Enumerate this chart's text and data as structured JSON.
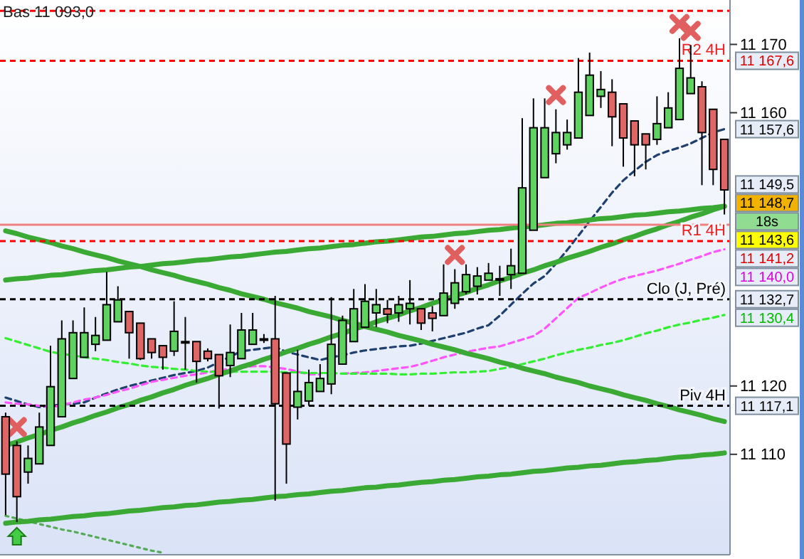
{
  "chart_data": [
    {
      "type": "candlestick",
      "categories": [
        null,
        null,
        null,
        null,
        null,
        null,
        null,
        null,
        null,
        null,
        null,
        null,
        null,
        null,
        null,
        null,
        null,
        null,
        null,
        null,
        null,
        null,
        null,
        null,
        null,
        null,
        null,
        null,
        null,
        null,
        null,
        null,
        null,
        null,
        null,
        null,
        null,
        null,
        null,
        null,
        null,
        null,
        null,
        null,
        null,
        null,
        null,
        null,
        null,
        null,
        null,
        null,
        null,
        null,
        null,
        null,
        null,
        null,
        null,
        null,
        null,
        null,
        null,
        null,
        null
      ],
      "ohlc": [
        [
          11115.5,
          11116.1,
          11101.1,
          11107.1
        ],
        [
          11111.3,
          11111.9,
          11100.1,
          11103.8
        ],
        [
          11107.4,
          11111.3,
          11105.7,
          11109.4
        ],
        [
          11108.6,
          11116.1,
          11108.6,
          11114.0
        ],
        [
          11111.3,
          11125.9,
          11111.3,
          11119.9
        ],
        [
          11115.5,
          11129.6,
          11115.5,
          11126.9
        ],
        [
          11121.1,
          11129.6,
          11121.1,
          11127.8
        ],
        [
          11124.2,
          11131.5,
          11124.2,
          11127.8
        ],
        [
          11126.1,
          11130.1,
          11125.1,
          11127.4
        ],
        [
          11126.7,
          11136.7,
          11126.7,
          11131.9
        ],
        [
          11129.4,
          11134.6,
          11129.4,
          11132.6
        ],
        [
          11130.9,
          11130.9,
          11124.0,
          11127.8
        ],
        [
          11129.2,
          11129.2,
          11123.8,
          11124.0
        ],
        [
          11126.9,
          11126.9,
          11124.0,
          11124.9
        ],
        [
          11125.9,
          11125.9,
          11122.4,
          11124.2
        ],
        [
          11125.1,
          11132.4,
          11124.4,
          11128.0
        ],
        [
          11126.5,
          11130.1,
          11122.4,
          11126.5
        ],
        [
          11126.5,
          11126.5,
          11120.5,
          11123.6
        ],
        [
          11125.1,
          11125.5,
          11123.6,
          11124.0
        ],
        [
          11124.6,
          11124.6,
          11116.7,
          11121.5
        ],
        [
          11123.0,
          11129.0,
          11121.3,
          11124.9
        ],
        [
          11124.0,
          11130.7,
          11124.0,
          11128.2
        ],
        [
          11126.1,
          11130.7,
          11126.1,
          11128.2
        ],
        [
          11126.9,
          11127.6,
          11126.3,
          11126.9
        ],
        [
          11126.9,
          11133.2,
          11103.2,
          11117.4
        ],
        [
          11121.9,
          11121.9,
          11105.7,
          11111.5
        ],
        [
          11116.9,
          11125.3,
          11115.1,
          11119.2
        ],
        [
          11117.8,
          11122.4,
          11117.1,
          11120.5
        ],
        [
          11119.2,
          11123.2,
          11119.2,
          11121.1
        ],
        [
          11120.3,
          11133.0,
          11118.8,
          11126.1
        ],
        [
          11123.2,
          11130.3,
          11123.2,
          11129.6
        ],
        [
          11126.5,
          11134.2,
          11126.5,
          11131.3
        ],
        [
          11128.6,
          11134.9,
          11128.6,
          11132.4
        ],
        [
          11130.7,
          11134.2,
          11128.6,
          11131.9
        ],
        [
          11131.3,
          11132.6,
          11129.2,
          11130.5
        ],
        [
          11130.7,
          11133.2,
          11129.4,
          11131.9
        ],
        [
          11131.3,
          11135.5,
          11129.0,
          11132.1
        ],
        [
          11131.3,
          11131.3,
          11128.2,
          11129.2
        ],
        [
          11130.7,
          11131.7,
          11128.0,
          11129.9
        ],
        [
          11130.3,
          11137.8,
          11130.3,
          11133.6
        ],
        [
          11132.1,
          11137.1,
          11131.3,
          11135.1
        ],
        [
          11133.8,
          11137.8,
          11133.4,
          11136.3
        ],
        [
          11134.6,
          11137.4,
          11133.4,
          11136.1
        ],
        [
          11135.5,
          11138.0,
          11135.5,
          11136.5
        ],
        [
          11135.5,
          11137.6,
          11133.2,
          11135.7
        ],
        [
          11136.3,
          11140.1,
          11134.2,
          11137.6
        ],
        [
          11136.5,
          11159.2,
          11136.5,
          11149.0
        ],
        [
          11142.8,
          11162.1,
          11142.8,
          11157.8
        ],
        [
          11150.5,
          11162.1,
          11150.5,
          11157.8
        ],
        [
          11154.0,
          11160.5,
          11152.6,
          11157.1
        ],
        [
          11155.3,
          11159.0,
          11154.6,
          11157.1
        ],
        [
          11156.3,
          11168.0,
          11156.3,
          11163.0
        ],
        [
          11159.6,
          11168.8,
          11159.6,
          11165.5
        ],
        [
          11162.4,
          11166.1,
          11160.7,
          11163.4
        ],
        [
          11163.0,
          11164.9,
          11155.1,
          11159.4
        ],
        [
          11161.3,
          11161.3,
          11152.1,
          11156.3
        ],
        [
          11158.8,
          11158.8,
          11150.7,
          11155.3
        ],
        [
          11156.9,
          11156.9,
          11151.7,
          11155.3
        ],
        [
          11156.1,
          11162.4,
          11155.3,
          11158.4
        ],
        [
          11157.8,
          11163.0,
          11157.8,
          11160.7
        ],
        [
          11159.0,
          11170.9,
          11159.0,
          11166.5
        ],
        [
          11162.8,
          11169.9,
          11162.8,
          11165.1
        ],
        [
          11163.8,
          11164.6,
          11149.4,
          11157.1
        ],
        [
          11160.5,
          11160.5,
          11149.4,
          11151.7
        ],
        [
          11156.1,
          11156.1,
          11145.1,
          11148.7
        ]
      ],
      "colors": [
        "#e06666",
        "#e06666",
        "#5fd35f",
        "#5fd35f",
        "#5fd35f",
        "#5fd35f",
        "#5fd35f",
        "#5fd35f",
        "#5fd35f",
        "#5fd35f",
        "#5fd35f",
        "#e06666",
        "#e06666",
        "#e06666",
        "#e06666",
        "#5fd35f",
        "#5fd35f",
        "#e06666",
        "#e06666",
        "#e06666",
        "#5fd35f",
        "#5fd35f",
        "#5fd35f",
        "#5fd35f",
        "#e06666",
        "#e06666",
        "#5fd35f",
        "#5fd35f",
        "#5fd35f",
        "#5fd35f",
        "#5fd35f",
        "#5fd35f",
        "#5fd35f",
        "#5fd35f",
        "#e06666",
        "#5fd35f",
        "#5fd35f",
        "#e06666",
        "#e06666",
        "#5fd35f",
        "#5fd35f",
        "#5fd35f",
        "#5fd35f",
        "#5fd35f",
        "#5fd35f",
        "#5fd35f",
        "#5fd35f",
        "#5fd35f",
        "#5fd35f",
        "#5fd35f",
        "#5fd35f",
        "#5fd35f",
        "#5fd35f",
        "#5fd35f",
        "#e06666",
        "#e06666",
        "#e06666",
        "#e06666",
        "#5fd35f",
        "#5fd35f",
        "#5fd35f",
        "#5fd35f",
        "#e06666",
        "#e06666",
        "#e06666"
      ],
      "ylim": [
        11095.3,
        11176.5
      ],
      "yticks": [
        {
          "value": 11110,
          "label": "11 110"
        },
        {
          "value": 11120,
          "label": "11 120"
        },
        {
          "value": 11160,
          "label": "11 160"
        },
        {
          "value": 11170,
          "label": "11 170"
        }
      ],
      "ref_lines": [
        {
          "axis": "y",
          "value": 11174.9,
          "label": null,
          "color": "#ff0000",
          "line_style": "dashed"
        },
        {
          "axis": "y",
          "value": 11167.6,
          "label": "R2 4H",
          "color": "#ff0000",
          "line_style": "dashed"
        },
        {
          "axis": "y",
          "value": 11143.6,
          "label": null,
          "color": "#f08080",
          "line_style": "solid"
        },
        {
          "axis": "y",
          "value": 11141.2,
          "label": "R1 4H",
          "color": "#ff0000",
          "line_style": "dashed"
        },
        {
          "axis": "y",
          "value": 11132.7,
          "label": "Clo (J, Pré)",
          "color": "#000000",
          "line_style": "dashed"
        },
        {
          "axis": "y",
          "value": 11117.1,
          "label": "Piv 4H",
          "color": "#000000",
          "line_style": "dashed"
        }
      ],
      "annotations": [
        "Bas 11 093,0",
        "11 167,6",
        "11 157,6",
        "11 149,5",
        "11 148,7",
        "18s",
        "11 143,6",
        "11 141,2",
        "11 140,0",
        "11 132,7",
        "11 130,4",
        "11 117,1"
      ]
    },
    {
      "type": "line",
      "ylim": [
        11095.3,
        11176.5
      ],
      "categories": [
        null,
        null,
        null,
        null,
        null,
        null,
        null,
        null,
        null,
        null,
        null,
        null,
        null,
        null,
        null,
        null,
        null,
        null,
        null,
        null,
        null,
        null,
        null,
        null,
        null,
        null,
        null,
        null,
        null,
        null,
        null,
        null,
        null,
        null,
        null,
        null,
        null,
        null,
        null,
        null,
        null,
        null,
        null,
        null,
        null,
        null,
        null,
        null,
        null,
        null,
        null,
        null,
        null,
        null,
        null,
        null,
        null,
        null,
        null,
        null,
        null,
        null,
        null,
        null,
        null
      ],
      "series": [
        {
          "type": "line",
          "color": "#1f3f6f",
          "line_style": "dashed",
          "values": [
            11118.3,
            11117.8,
            11117.3,
            11116.9,
            11117.1,
            11117.3,
            11117.4,
            11117.6,
            11118.3,
            11118.9,
            11119.5,
            11120.0,
            11120.4,
            11120.8,
            11121.2,
            11121.6,
            11121.9,
            11122.2,
            11122.7,
            11123.5,
            11124.3,
            11125.1,
            11125.3,
            11125.5,
            11125.7,
            11125.0,
            11124.6,
            11124.2,
            11123.8,
            11124.2,
            11124.5,
            11124.9,
            11125.2,
            11125.4,
            11125.6,
            11125.8,
            11125.9,
            11126.2,
            11126.6,
            11127.0,
            11127.4,
            11127.8,
            11128.4,
            11128.9,
            11130.3,
            11131.9,
            11133.5,
            11135.0,
            11136.1,
            11137.9,
            11139.9,
            11142.0,
            11144.1,
            11146.2,
            11148.3,
            11150.1,
            11151.5,
            11152.8,
            11153.8,
            11154.4,
            11154.9,
            11155.5,
            11156.3,
            11157.1,
            11157.6
          ]
        },
        {
          "type": "line",
          "color": "#ff55ff",
          "line_style": "dashed",
          "values": [
            11117.6,
            11117.4,
            11117.3,
            11117.1,
            11116.9,
            11117.2,
            11117.6,
            11118.0,
            11118.3,
            11118.7,
            11119.2,
            11119.6,
            11120.1,
            11120.6,
            11120.9,
            11121.2,
            11121.5,
            11121.7,
            11122.0,
            11122.3,
            11122.5,
            11122.7,
            11122.9,
            11122.9,
            11122.7,
            11122.5,
            11122.1,
            11121.7,
            11121.7,
            null,
            11121.8,
            11121.9,
            11122.0,
            11122.2,
            11122.4,
            11122.6,
            11122.8,
            11123.2,
            11123.7,
            11124.2,
            11124.6,
            11125.0,
            11125.3,
            11125.6,
            11125.8,
            11126.3,
            11126.8,
            11127.3,
            11128.4,
            11129.9,
            11131.4,
            11132.9,
            11133.6,
            11134.4,
            11135.1,
            11135.7,
            11136.1,
            11136.5,
            11136.9,
            11137.4,
            11137.9,
            11138.5,
            11139.0,
            11139.6,
            11140.0
          ]
        },
        {
          "type": "line",
          "color": "#33ee33",
          "line_style": "dashed",
          "values": [
            11127.0,
            11126.5,
            11126.0,
            11125.5,
            11125.0,
            11124.7,
            11124.5,
            11124.2,
            11124.0,
            11123.8,
            11123.5,
            11123.3,
            11123.0,
            11122.8,
            11122.7,
            11122.5,
            11122.4,
            11122.2,
            11122.1,
            11122.1,
            11122.1,
            11122.1,
            11122.1,
            11122.1,
            11122.1,
            11122.0,
            11122.0,
            11121.9,
            11121.9,
            11121.9,
            11121.8,
            11121.8,
            11121.8,
            11121.8,
            11121.8,
            11121.7,
            11121.7,
            11121.8,
            11121.8,
            11121.9,
            11122.0,
            11122.0,
            11122.1,
            11122.2,
            11122.5,
            11122.8,
            11123.2,
            11123.6,
            11124.0,
            11124.5,
            11124.9,
            11125.3,
            11125.6,
            11126.0,
            11126.3,
            11126.7,
            11127.2,
            11127.7,
            11128.1,
            11128.6,
            11129.0,
            11129.3,
            11129.7,
            11130.0,
            11130.4
          ]
        },
        {
          "type": "line",
          "color": "#55aa55",
          "line_style": "dotted",
          "values": [
            11101.0,
            11100.6,
            11100.2,
            11099.8,
            11099.4,
            11099.0,
            11098.7,
            11098.3,
            11097.9,
            11097.5,
            11097.1,
            11096.7,
            11096.3,
            11095.9,
            11095.6,
            null,
            null,
            null,
            null,
            null,
            null,
            null,
            null,
            null,
            null,
            null,
            null,
            null,
            null,
            null,
            null,
            null,
            null,
            null,
            null,
            null,
            null,
            null,
            null,
            null,
            null,
            null,
            null,
            null,
            null,
            null,
            null,
            null,
            null,
            null,
            null,
            null,
            null,
            null,
            null,
            null,
            null,
            null,
            null,
            null,
            null,
            null,
            null,
            null,
            null
          ]
        },
        {
          "type": "line",
          "color": "#3aaa35",
          "line_style": "solid",
          "values": [
            11142.7,
            11142.3,
            11141.8,
            11141.4,
            11141.0,
            11140.5,
            11140.1,
            11139.6,
            11139.2,
            11138.8,
            11138.3,
            11137.9,
            11137.5,
            11137.0,
            11136.6,
            11136.2,
            11135.7,
            11135.3,
            11134.9,
            11134.4,
            11134.0,
            11133.5,
            11133.1,
            11132.7,
            11132.2,
            11131.8,
            11131.4,
            11130.9,
            11130.5,
            11130.1,
            11129.6,
            11129.2,
            11128.7,
            11128.3,
            11127.9,
            11127.4,
            11127.0,
            11126.6,
            11126.1,
            11125.7,
            11125.3,
            11124.8,
            11124.4,
            11124.0,
            11123.5,
            11123.1,
            11122.6,
            11122.2,
            11121.8,
            11121.3,
            11120.9,
            11120.5,
            11120.0,
            11119.6,
            11119.2,
            11118.7,
            11118.3,
            11117.9,
            11117.4,
            11117.0,
            11116.5,
            11116.1,
            11115.7,
            11115.2,
            11114.8
          ]
        },
        {
          "type": "line",
          "color": "#3aaa35",
          "line_style": "solid",
          "values": [
            11099.9,
            11100.1,
            11100.2,
            11100.4,
            11100.5,
            11100.7,
            11100.9,
            11101.0,
            11101.2,
            11101.3,
            11101.5,
            11101.7,
            11101.8,
            11102.0,
            11102.2,
            11102.3,
            11102.5,
            11102.6,
            11102.8,
            11103.0,
            11103.1,
            11103.3,
            11103.4,
            11103.6,
            11103.8,
            11103.9,
            11104.1,
            11104.2,
            11104.4,
            11104.6,
            11104.7,
            11104.9,
            11105.1,
            11105.2,
            11105.4,
            11105.5,
            11105.7,
            11105.9,
            11106.0,
            11106.2,
            11106.3,
            11106.5,
            11106.7,
            11106.8,
            11107.0,
            11107.1,
            11107.3,
            11107.5,
            11107.6,
            11107.8,
            11108.0,
            11108.1,
            11108.3,
            11108.4,
            11108.6,
            11108.8,
            11108.9,
            11109.1,
            11109.2,
            11109.4,
            11109.6,
            11109.7,
            11109.9,
            11110.0,
            11110.2
          ]
        },
        {
          "type": "line",
          "color": "#3aaa35",
          "line_style": "solid",
          "values": [
            11135.5,
            11135.7,
            11135.8,
            11136.0,
            11136.2,
            11136.3,
            11136.5,
            11136.7,
            11136.9,
            11137.0,
            11137.2,
            11137.4,
            11137.5,
            11137.7,
            11137.9,
            11138.0,
            11138.2,
            11138.4,
            11138.5,
            11138.7,
            11138.9,
            11139.0,
            11139.2,
            11139.4,
            11139.6,
            11139.7,
            11139.9,
            11140.1,
            11140.2,
            11140.4,
            11140.6,
            11140.7,
            11140.9,
            11141.1,
            11141.2,
            11141.4,
            11141.6,
            11141.8,
            11141.9,
            11142.1,
            11142.3,
            11142.4,
            11142.6,
            11142.8,
            11142.9,
            11143.1,
            11143.3,
            11143.4,
            11143.6,
            11143.8,
            11143.9,
            11144.1,
            11144.3,
            11144.5,
            11144.6,
            11144.8,
            11145.0,
            11145.1,
            11145.3,
            11145.5,
            11145.6,
            11145.8,
            11146.0,
            11146.1,
            11146.3
          ]
        },
        {
          "type": "line",
          "color": "#3aaa35",
          "line_style": "solid",
          "values": [
            11111.3,
            11111.8,
            11112.4,
            11112.9,
            11113.5,
            11114.0,
            11114.6,
            11115.1,
            11115.7,
            11116.2,
            11116.8,
            11117.3,
            11117.9,
            11118.4,
            11119.0,
            11119.5,
            11120.1,
            11120.6,
            11121.1,
            11121.7,
            11122.2,
            11122.8,
            11123.3,
            11123.9,
            11124.4,
            11125.0,
            11125.5,
            11126.1,
            11126.6,
            11127.2,
            11127.7,
            11128.3,
            11128.8,
            11129.4,
            11129.9,
            11130.4,
            11131.0,
            11131.5,
            11132.1,
            11132.6,
            11133.2,
            11133.7,
            11134.3,
            11134.8,
            11135.4,
            11135.9,
            11136.5,
            11137.0,
            11137.6,
            11138.1,
            11138.7,
            11139.2,
            11139.7,
            11140.3,
            11140.8,
            11141.4,
            11141.9,
            11142.5,
            11143.0,
            11143.6,
            11144.1,
            11144.7,
            11145.2,
            11145.8,
            11146.3
          ]
        }
      ]
    }
  ]
}
